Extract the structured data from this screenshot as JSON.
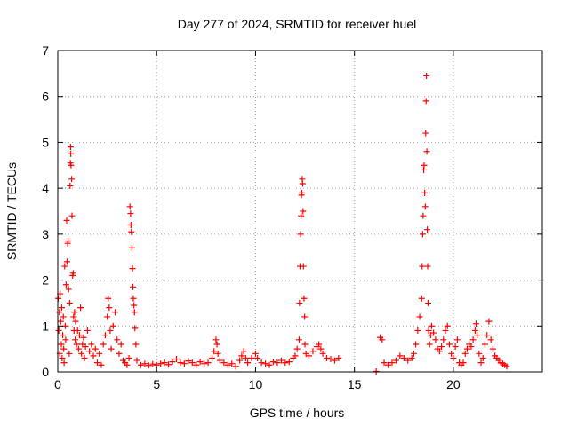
{
  "chart_data": {
    "type": "scatter",
    "title": "Day 277 of 2024, SRMTID for receiver huel",
    "xlabel": "GPS time / hours",
    "ylabel": "SRMTID / TECUs",
    "xlim": [
      0,
      24.5
    ],
    "ylim": [
      0,
      7
    ],
    "xticks": [
      0,
      5,
      10,
      15,
      20
    ],
    "yticks": [
      0,
      1,
      2,
      3,
      4,
      5,
      6,
      7
    ],
    "xtick_labels": [
      "0",
      "5",
      "10",
      "15",
      "20"
    ],
    "ytick_labels": [
      "0",
      "1",
      "2",
      "3",
      "4",
      "5",
      "6",
      "7"
    ],
    "grid": true,
    "marker": "+",
    "color": "#ff0000",
    "series": [
      {
        "name": "SRMTID",
        "points": [
          [
            0.02,
            1.6
          ],
          [
            0.05,
            0.9
          ],
          [
            0.08,
            1.3
          ],
          [
            0.1,
            0.4
          ],
          [
            0.12,
            1.7
          ],
          [
            0.15,
            1.1
          ],
          [
            0.18,
            0.6
          ],
          [
            0.2,
            1.4
          ],
          [
            0.22,
            0.3
          ],
          [
            0.25,
            0.8
          ],
          [
            0.28,
            1.2
          ],
          [
            0.3,
            0.5
          ],
          [
            0.32,
            0.2
          ],
          [
            0.35,
            2.3
          ],
          [
            0.38,
            1.0
          ],
          [
            0.4,
            0.7
          ],
          [
            0.42,
            1.9
          ],
          [
            0.45,
            3.3
          ],
          [
            0.47,
            2.4
          ],
          [
            0.5,
            2.8
          ],
          [
            0.52,
            2.85
          ],
          [
            0.55,
            1.8
          ],
          [
            0.58,
            0.4
          ],
          [
            0.6,
            1.5
          ],
          [
            0.62,
            4.05
          ],
          [
            0.64,
            4.55
          ],
          [
            0.65,
            4.9
          ],
          [
            0.66,
            4.75
          ],
          [
            0.67,
            4.5
          ],
          [
            0.7,
            4.2
          ],
          [
            0.72,
            3.4
          ],
          [
            0.75,
            2.1
          ],
          [
            0.78,
            2.15
          ],
          [
            0.8,
            1.2
          ],
          [
            0.82,
            0.9
          ],
          [
            0.85,
            1.3
          ],
          [
            0.88,
            0.7
          ],
          [
            0.9,
            1.1
          ],
          [
            0.95,
            0.6
          ],
          [
            1.0,
            0.9
          ],
          [
            1.05,
            0.5
          ],
          [
            1.1,
            0.8
          ],
          [
            1.15,
            1.4
          ],
          [
            1.2,
            0.4
          ],
          [
            1.25,
            0.6
          ],
          [
            1.3,
            0.75
          ],
          [
            1.35,
            0.3
          ],
          [
            1.4,
            0.55
          ],
          [
            1.5,
            0.9
          ],
          [
            1.6,
            0.45
          ],
          [
            1.7,
            0.6
          ],
          [
            1.8,
            0.35
          ],
          [
            1.9,
            0.5
          ],
          [
            2.0,
            0.2
          ],
          [
            2.1,
            0.4
          ],
          [
            2.2,
            0.15
          ],
          [
            2.3,
            0.6
          ],
          [
            2.4,
            0.8
          ],
          [
            2.5,
            1.2
          ],
          [
            2.55,
            1.6
          ],
          [
            2.6,
            1.4
          ],
          [
            2.65,
            0.9
          ],
          [
            2.7,
            0.5
          ],
          [
            2.8,
            1.0
          ],
          [
            2.9,
            1.3
          ],
          [
            3.0,
            0.7
          ],
          [
            3.1,
            0.4
          ],
          [
            3.2,
            0.6
          ],
          [
            3.3,
            0.25
          ],
          [
            3.4,
            0.2
          ],
          [
            3.5,
            0.15
          ],
          [
            3.6,
            0.3
          ],
          [
            3.65,
            3.6
          ],
          [
            3.68,
            3.45
          ],
          [
            3.7,
            3.2
          ],
          [
            3.72,
            3.05
          ],
          [
            3.75,
            2.7
          ],
          [
            3.78,
            2.25
          ],
          [
            3.8,
            1.85
          ],
          [
            3.82,
            1.6
          ],
          [
            3.85,
            1.45
          ],
          [
            3.88,
            1.3
          ],
          [
            3.9,
            0.95
          ],
          [
            3.95,
            0.6
          ],
          [
            4.0,
            0.25
          ],
          [
            4.2,
            0.15
          ],
          [
            4.4,
            0.18
          ],
          [
            4.6,
            0.14
          ],
          [
            4.8,
            0.17
          ],
          [
            5.0,
            0.15
          ],
          [
            5.2,
            0.18
          ],
          [
            5.4,
            0.2
          ],
          [
            5.6,
            0.16
          ],
          [
            5.8,
            0.22
          ],
          [
            6.0,
            0.28
          ],
          [
            6.2,
            0.2
          ],
          [
            6.4,
            0.18
          ],
          [
            6.6,
            0.24
          ],
          [
            6.8,
            0.2
          ],
          [
            7.0,
            0.15
          ],
          [
            7.2,
            0.22
          ],
          [
            7.4,
            0.18
          ],
          [
            7.6,
            0.2
          ],
          [
            7.8,
            0.3
          ],
          [
            7.9,
            0.45
          ],
          [
            8.0,
            0.7
          ],
          [
            8.05,
            0.6
          ],
          [
            8.1,
            0.4
          ],
          [
            8.2,
            0.25
          ],
          [
            8.4,
            0.2
          ],
          [
            8.6,
            0.15
          ],
          [
            8.8,
            0.18
          ],
          [
            9.0,
            0.12
          ],
          [
            9.2,
            0.25
          ],
          [
            9.3,
            0.35
          ],
          [
            9.4,
            0.45
          ],
          [
            9.5,
            0.3
          ],
          [
            9.6,
            0.2
          ],
          [
            9.8,
            0.3
          ],
          [
            10.0,
            0.4
          ],
          [
            10.1,
            0.3
          ],
          [
            10.3,
            0.2
          ],
          [
            10.5,
            0.18
          ],
          [
            10.7,
            0.15
          ],
          [
            10.9,
            0.22
          ],
          [
            11.1,
            0.2
          ],
          [
            11.3,
            0.25
          ],
          [
            11.5,
            0.2
          ],
          [
            11.7,
            0.22
          ],
          [
            11.9,
            0.3
          ],
          [
            12.0,
            0.35
          ],
          [
            12.1,
            0.5
          ],
          [
            12.2,
            0.7
          ],
          [
            12.22,
            1.5
          ],
          [
            12.25,
            2.3
          ],
          [
            12.28,
            3.0
          ],
          [
            12.3,
            3.4
          ],
          [
            12.32,
            3.85
          ],
          [
            12.34,
            3.9
          ],
          [
            12.36,
            4.2
          ],
          [
            12.38,
            4.1
          ],
          [
            12.4,
            3.5
          ],
          [
            12.42,
            2.3
          ],
          [
            12.45,
            1.6
          ],
          [
            12.48,
            1.2
          ],
          [
            12.5,
            0.6
          ],
          [
            12.55,
            0.4
          ],
          [
            12.7,
            0.35
          ],
          [
            12.9,
            0.45
          ],
          [
            13.1,
            0.55
          ],
          [
            13.2,
            0.6
          ],
          [
            13.3,
            0.5
          ],
          [
            13.4,
            0.4
          ],
          [
            13.6,
            0.3
          ],
          [
            13.8,
            0.28
          ],
          [
            14.0,
            0.25
          ],
          [
            14.2,
            0.3
          ],
          [
            16.1,
            0.01
          ],
          [
            16.3,
            0.75
          ],
          [
            16.4,
            0.7
          ],
          [
            16.5,
            0.2
          ],
          [
            16.7,
            0.15
          ],
          [
            16.9,
            0.2
          ],
          [
            17.1,
            0.25
          ],
          [
            17.3,
            0.35
          ],
          [
            17.5,
            0.3
          ],
          [
            17.7,
            0.25
          ],
          [
            17.9,
            0.3
          ],
          [
            18.0,
            0.4
          ],
          [
            18.1,
            0.6
          ],
          [
            18.2,
            0.9
          ],
          [
            18.3,
            1.2
          ],
          [
            18.4,
            1.6
          ],
          [
            18.42,
            2.3
          ],
          [
            18.45,
            3.0
          ],
          [
            18.47,
            3.4
          ],
          [
            18.5,
            4.4
          ],
          [
            18.52,
            4.5
          ],
          [
            18.55,
            3.9
          ],
          [
            18.58,
            3.6
          ],
          [
            18.6,
            5.2
          ],
          [
            18.62,
            5.9
          ],
          [
            18.64,
            6.45
          ],
          [
            18.66,
            4.8
          ],
          [
            18.68,
            3.1
          ],
          [
            18.7,
            2.3
          ],
          [
            18.72,
            1.5
          ],
          [
            18.75,
            0.9
          ],
          [
            18.8,
            0.6
          ],
          [
            18.85,
            0.8
          ],
          [
            18.9,
            1.0
          ],
          [
            19.0,
            0.85
          ],
          [
            19.1,
            0.7
          ],
          [
            19.2,
            0.5
          ],
          [
            19.3,
            0.45
          ],
          [
            19.4,
            0.55
          ],
          [
            19.5,
            0.7
          ],
          [
            19.6,
            0.9
          ],
          [
            19.7,
            1.0
          ],
          [
            19.8,
            0.6
          ],
          [
            19.9,
            0.4
          ],
          [
            20.0,
            0.3
          ],
          [
            20.1,
            0.55
          ],
          [
            20.2,
            0.7
          ],
          [
            20.3,
            0.2
          ],
          [
            20.4,
            0.15
          ],
          [
            20.5,
            0.2
          ],
          [
            20.6,
            0.4
          ],
          [
            20.7,
            0.5
          ],
          [
            20.8,
            0.6
          ],
          [
            20.9,
            0.55
          ],
          [
            21.0,
            0.7
          ],
          [
            21.1,
            0.9
          ],
          [
            21.15,
            1.05
          ],
          [
            21.2,
            0.8
          ],
          [
            21.3,
            0.4
          ],
          [
            21.4,
            0.2
          ],
          [
            21.5,
            0.3
          ],
          [
            21.6,
            0.6
          ],
          [
            21.7,
            0.8
          ],
          [
            21.8,
            1.1
          ],
          [
            21.9,
            0.7
          ],
          [
            22.0,
            0.5
          ],
          [
            22.1,
            0.35
          ],
          [
            22.2,
            0.3
          ],
          [
            22.3,
            0.25
          ],
          [
            22.4,
            0.2
          ],
          [
            22.5,
            0.18
          ],
          [
            22.6,
            0.15
          ],
          [
            22.7,
            0.12
          ]
        ]
      }
    ]
  }
}
